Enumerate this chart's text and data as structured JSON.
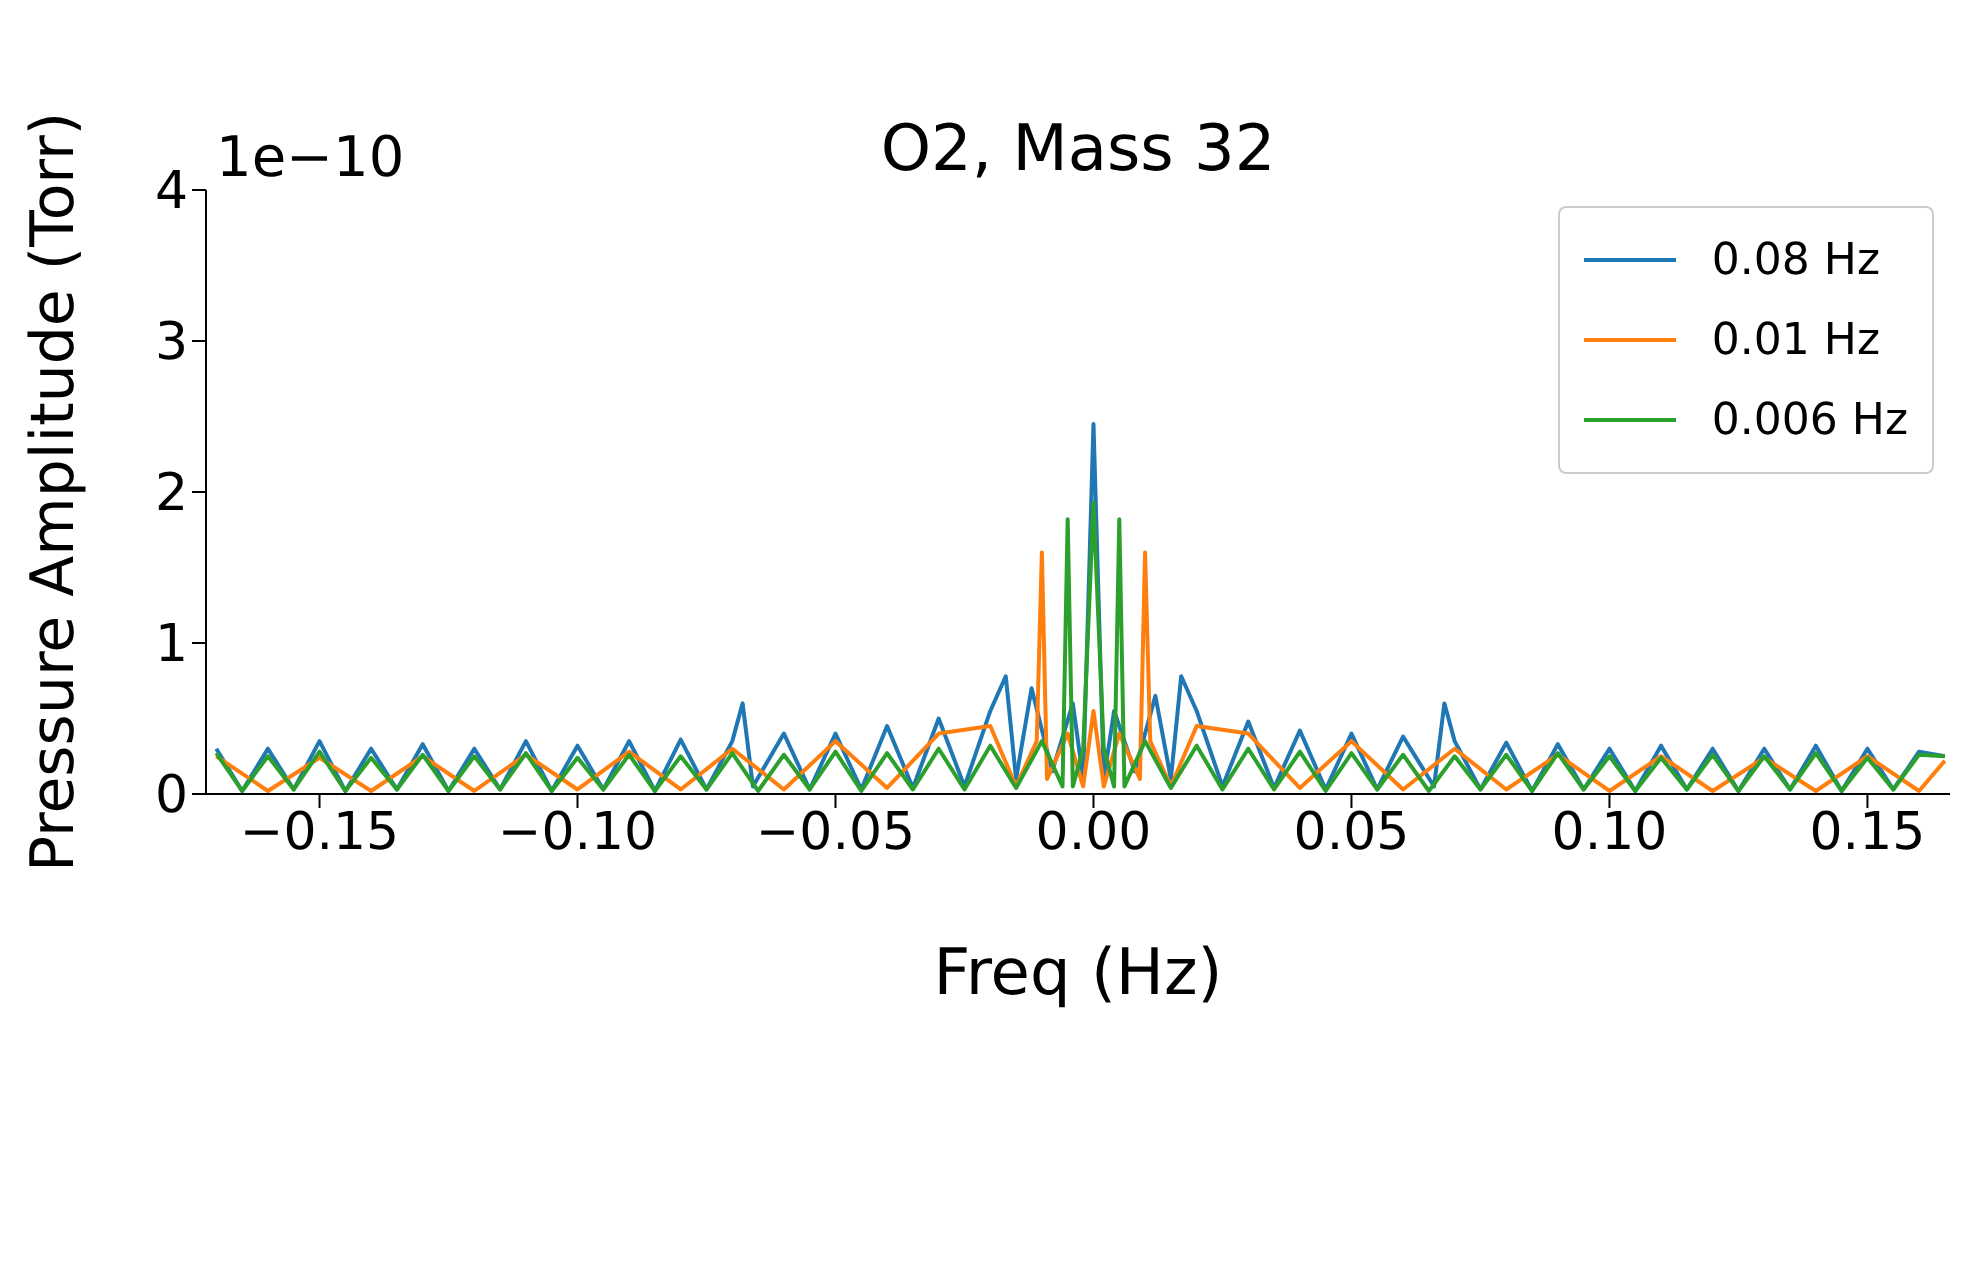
{
  "chart_data": {
    "type": "line",
    "title": "O2, Mass 32",
    "xlabel": "Freq (Hz)",
    "ylabel": "Pressure Amplitude (Torr)",
    "annotations": [
      "1e−10"
    ],
    "xlim": [
      -0.172,
      0.166
    ],
    "xticks": [
      {
        "value": -0.15,
        "label": "−0.15"
      },
      {
        "value": -0.1,
        "label": "−0.10"
      },
      {
        "value": -0.05,
        "label": "−0.05"
      },
      {
        "value": 0,
        "label": "0.00"
      },
      {
        "value": 0.05,
        "label": "0.05"
      },
      {
        "value": 0.1,
        "label": "0.10"
      },
      {
        "value": 0.15,
        "label": "0.15"
      }
    ],
    "ylim": [
      0,
      4
    ],
    "yticks": [
      0,
      1,
      2,
      3,
      4
    ],
    "grid": false,
    "legend": "top right",
    "marker": "none",
    "line_style": "solid",
    "series": [
      {
        "name": "0.08 Hz",
        "color": "#1f77b4",
        "x": [
          -0.17,
          -0.165,
          -0.16,
          -0.155,
          -0.15,
          -0.145,
          -0.14,
          -0.135,
          -0.13,
          -0.125,
          -0.12,
          -0.115,
          -0.11,
          -0.105,
          -0.1,
          -0.095,
          -0.09,
          -0.085,
          -0.08,
          -0.075,
          -0.07,
          -0.068,
          -0.066,
          -0.06,
          -0.055,
          -0.05,
          -0.045,
          -0.04,
          -0.035,
          -0.03,
          -0.025,
          -0.02,
          -0.017,
          -0.015,
          -0.012,
          -0.008,
          -0.004,
          -0.002,
          0,
          0.002,
          0.004,
          0.008,
          0.012,
          0.015,
          0.017,
          0.02,
          0.025,
          0.03,
          0.035,
          0.04,
          0.045,
          0.05,
          0.055,
          0.06,
          0.066,
          0.068,
          0.07,
          0.075,
          0.08,
          0.085,
          0.09,
          0.095,
          0.1,
          0.105,
          0.11,
          0.115,
          0.12,
          0.125,
          0.13,
          0.135,
          0.14,
          0.145,
          0.15,
          0.155,
          0.16,
          0.165
        ],
        "values": [
          0.3,
          0.02,
          0.3,
          0.03,
          0.35,
          0.02,
          0.3,
          0.03,
          0.33,
          0.02,
          0.3,
          0.03,
          0.35,
          0.02,
          0.32,
          0.03,
          0.35,
          0.02,
          0.36,
          0.03,
          0.35,
          0.6,
          0.05,
          0.4,
          0.03,
          0.4,
          0.03,
          0.45,
          0.04,
          0.5,
          0.05,
          0.55,
          0.78,
          0.1,
          0.7,
          0.15,
          0.6,
          0.1,
          2.45,
          0.1,
          0.55,
          0.15,
          0.65,
          0.1,
          0.78,
          0.55,
          0.05,
          0.48,
          0.04,
          0.42,
          0.03,
          0.4,
          0.03,
          0.38,
          0.05,
          0.6,
          0.35,
          0.03,
          0.34,
          0.02,
          0.33,
          0.03,
          0.3,
          0.02,
          0.32,
          0.03,
          0.3,
          0.02,
          0.3,
          0.03,
          0.32,
          0.02,
          0.3,
          0.03,
          0.28,
          0.25
        ]
      },
      {
        "name": "0.01 Hz",
        "color": "#ff7f0e",
        "x": [
          -0.17,
          -0.16,
          -0.15,
          -0.14,
          -0.13,
          -0.12,
          -0.11,
          -0.1,
          -0.09,
          -0.08,
          -0.07,
          -0.06,
          -0.05,
          -0.04,
          -0.03,
          -0.02,
          -0.015,
          -0.011,
          -0.01,
          -0.009,
          -0.005,
          -0.002,
          0,
          0.002,
          0.005,
          0.009,
          0.01,
          0.011,
          0.015,
          0.02,
          0.03,
          0.04,
          0.05,
          0.06,
          0.07,
          0.08,
          0.09,
          0.1,
          0.11,
          0.12,
          0.13,
          0.14,
          0.15,
          0.16,
          0.165
        ],
        "values": [
          0.25,
          0.02,
          0.24,
          0.02,
          0.25,
          0.02,
          0.26,
          0.03,
          0.28,
          0.03,
          0.3,
          0.03,
          0.35,
          0.04,
          0.4,
          0.45,
          0.05,
          0.35,
          1.6,
          0.1,
          0.4,
          0.05,
          0.55,
          0.05,
          0.4,
          0.1,
          1.6,
          0.35,
          0.05,
          0.45,
          0.4,
          0.04,
          0.35,
          0.03,
          0.3,
          0.03,
          0.26,
          0.02,
          0.25,
          0.02,
          0.24,
          0.02,
          0.25,
          0.02,
          0.22
        ]
      },
      {
        "name": "0.006 Hz",
        "color": "#2ca02c",
        "x": [
          -0.17,
          -0.165,
          -0.16,
          -0.155,
          -0.15,
          -0.145,
          -0.14,
          -0.135,
          -0.13,
          -0.125,
          -0.12,
          -0.115,
          -0.11,
          -0.105,
          -0.1,
          -0.095,
          -0.09,
          -0.085,
          -0.08,
          -0.075,
          -0.07,
          -0.065,
          -0.06,
          -0.055,
          -0.05,
          -0.045,
          -0.04,
          -0.035,
          -0.03,
          -0.025,
          -0.02,
          -0.015,
          -0.01,
          -0.006,
          -0.005,
          -0.004,
          -0.002,
          0,
          0.002,
          0.004,
          0.005,
          0.006,
          0.01,
          0.015,
          0.02,
          0.025,
          0.03,
          0.035,
          0.04,
          0.045,
          0.05,
          0.055,
          0.06,
          0.065,
          0.07,
          0.075,
          0.08,
          0.085,
          0.09,
          0.095,
          0.1,
          0.105,
          0.11,
          0.115,
          0.12,
          0.125,
          0.13,
          0.135,
          0.14,
          0.145,
          0.15,
          0.155,
          0.16,
          0.165
        ],
        "values": [
          0.27,
          0.02,
          0.25,
          0.03,
          0.28,
          0.02,
          0.24,
          0.03,
          0.26,
          0.02,
          0.25,
          0.03,
          0.27,
          0.02,
          0.24,
          0.03,
          0.26,
          0.02,
          0.25,
          0.03,
          0.27,
          0.02,
          0.26,
          0.03,
          0.28,
          0.02,
          0.27,
          0.03,
          0.3,
          0.03,
          0.32,
          0.04,
          0.35,
          0.05,
          1.82,
          0.05,
          0.3,
          1.93,
          0.3,
          0.05,
          1.82,
          0.05,
          0.35,
          0.04,
          0.32,
          0.03,
          0.3,
          0.03,
          0.28,
          0.02,
          0.27,
          0.03,
          0.26,
          0.02,
          0.25,
          0.03,
          0.26,
          0.02,
          0.27,
          0.03,
          0.25,
          0.02,
          0.24,
          0.03,
          0.26,
          0.02,
          0.25,
          0.03,
          0.27,
          0.02,
          0.24,
          0.03,
          0.26,
          0.25
        ]
      }
    ]
  }
}
